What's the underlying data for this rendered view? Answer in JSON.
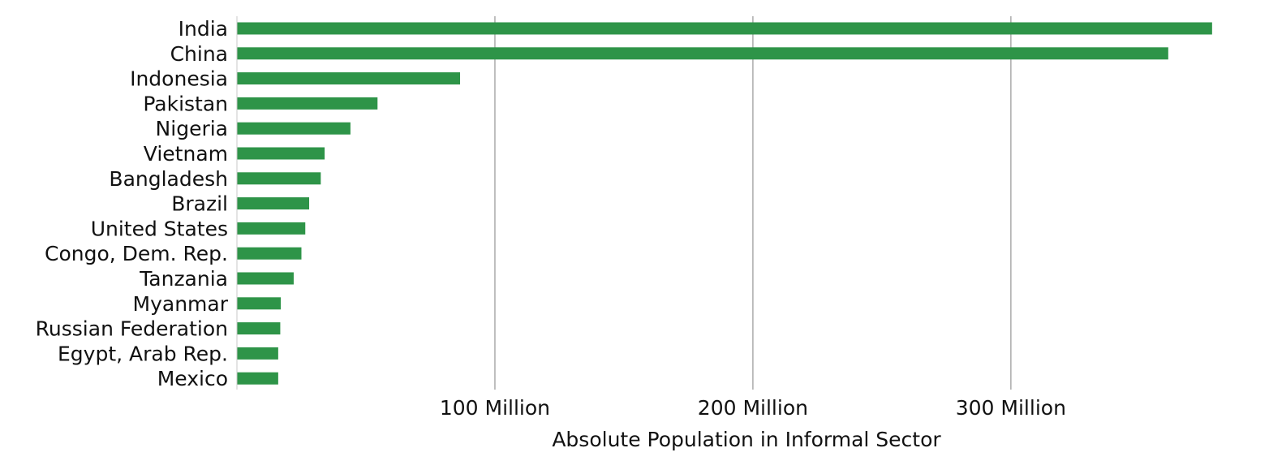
{
  "chart_data": {
    "type": "bar",
    "orientation": "horizontal",
    "title": "",
    "xlabel": "Absolute Population in Informal Sector",
    "ylabel": "",
    "xlim": [
      0,
      390000000
    ],
    "x_ticks": [
      {
        "value": 100000000,
        "label": "100 Million"
      },
      {
        "value": 200000000,
        "label": "200 Million"
      },
      {
        "value": 300000000,
        "label": "300 Million"
      }
    ],
    "grid": "vertical gridlines",
    "legend": "none",
    "bar_color": "#2e9448",
    "grid_color": "#b0b0b0",
    "categories": [
      "India",
      "China",
      "Indonesia",
      "Pakistan",
      "Nigeria",
      "Vietnam",
      "Bangladesh",
      "Brazil",
      "United States",
      "Congo, Dem. Rep.",
      "Tanzania",
      "Myanmar",
      "Russian Federation",
      "Egypt, Arab Rep.",
      "Mexico"
    ],
    "values": [
      378000000,
      361000000,
      86500000,
      54500000,
      44000000,
      34000000,
      32500000,
      28000000,
      26500000,
      25000000,
      22000000,
      17000000,
      16800000,
      16000000,
      16000000
    ]
  }
}
